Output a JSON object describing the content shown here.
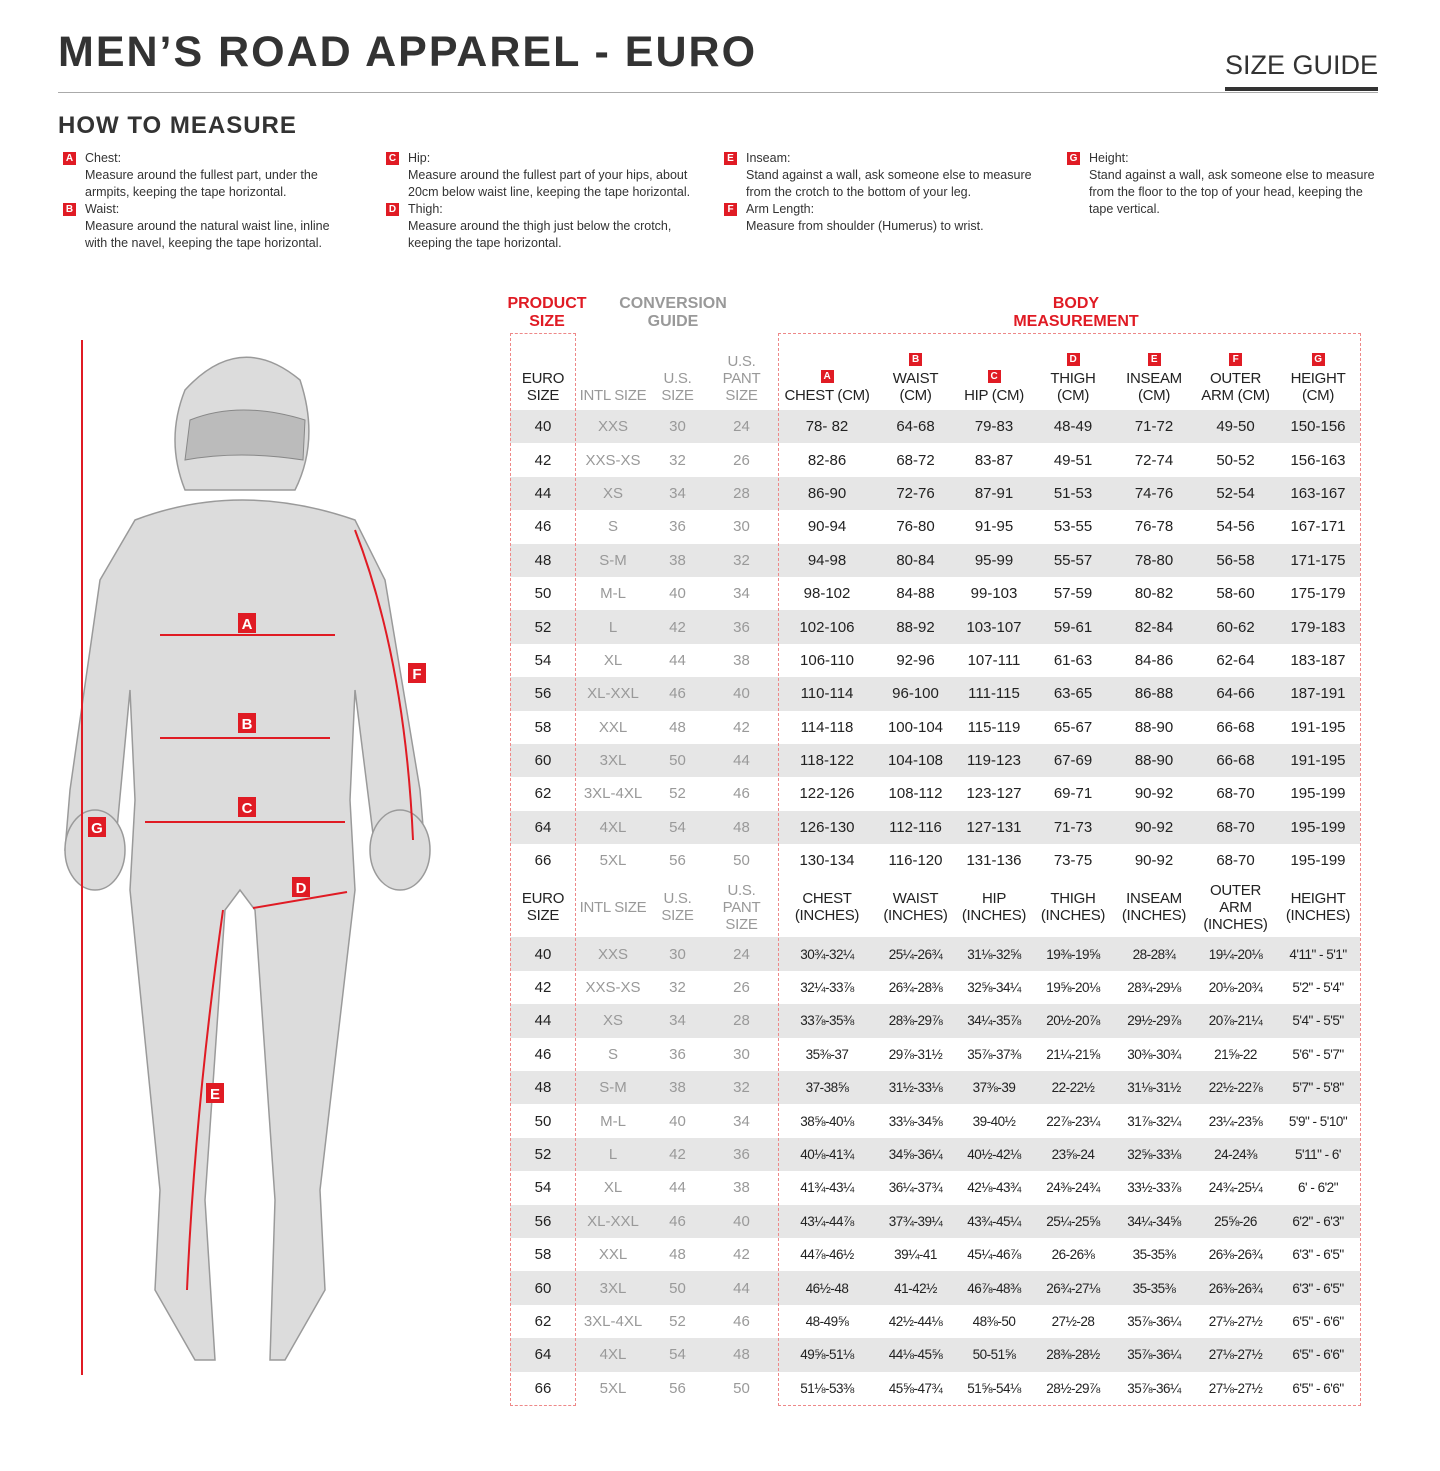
{
  "header": {
    "title": "MEN’S ROAD APPAREL - EURO",
    "tag": "SIZE GUIDE"
  },
  "how_to": {
    "title": "HOW TO MEASURE",
    "items": [
      {
        "letter": "A",
        "name": "Chest:",
        "text": "Measure around the fullest part, under the armpits, keeping the tape horizontal."
      },
      {
        "letter": "B",
        "name": "Waist:",
        "text": "Measure around the natural waist line, inline with the navel, keeping the tape horizontal."
      },
      {
        "letter": "C",
        "name": "Hip:",
        "text": "Measure around the fullest part of your hips, about 20cm below waist line, keeping the tape horizontal."
      },
      {
        "letter": "D",
        "name": "Thigh:",
        "text": "Measure around the thigh just below the crotch, keeping the tape horizontal."
      },
      {
        "letter": "E",
        "name": "Inseam:",
        "text": "Stand against a wall, ask someone else to measure from the crotch to the bottom of your leg."
      },
      {
        "letter": "F",
        "name": "Arm Length:",
        "text": "Measure from shoulder (Humerus) to wrist."
      },
      {
        "letter": "G",
        "name": "Height:",
        "text": "Stand against a wall, ask someone else to measure from the floor to the top of your head, keeping the tape vertical."
      }
    ]
  },
  "groups": {
    "product": "PRODUCT SIZE",
    "conversion": "CONVERSION GUIDE",
    "body": "BODY MEASUREMENT"
  },
  "colors": {
    "accent": "#e01b24",
    "stripe": "#e6e6e6"
  },
  "figure_labels": [
    "A",
    "B",
    "C",
    "D",
    "E",
    "F",
    "G"
  ],
  "cm_headers": [
    "EURO SIZE",
    "INTL SIZE",
    "U.S. SIZE",
    "U.S. PANT SIZE",
    "CHEST (CM)",
    "WAIST (CM)",
    "HIP (CM)",
    "THIGH (CM)",
    "INSEAM (CM)",
    "OUTER ARM (CM)",
    "HEIGHT (CM)"
  ],
  "header_letters": [
    "A",
    "B",
    "C",
    "D",
    "E",
    "F",
    "G"
  ],
  "cm_rows": [
    [
      "40",
      "XXS",
      "30",
      "24",
      "78- 82",
      "64-68",
      "79-83",
      "48-49",
      "71-72",
      "49-50",
      "150-156"
    ],
    [
      "42",
      "XXS-XS",
      "32",
      "26",
      "82-86",
      "68-72",
      "83-87",
      "49-51",
      "72-74",
      "50-52",
      "156-163"
    ],
    [
      "44",
      "XS",
      "34",
      "28",
      "86-90",
      "72-76",
      "87-91",
      "51-53",
      "74-76",
      "52-54",
      "163-167"
    ],
    [
      "46",
      "S",
      "36",
      "30",
      "90-94",
      "76-80",
      "91-95",
      "53-55",
      "76-78",
      "54-56",
      "167-171"
    ],
    [
      "48",
      "S-M",
      "38",
      "32",
      "94-98",
      "80-84",
      "95-99",
      "55-57",
      "78-80",
      "56-58",
      "171-175"
    ],
    [
      "50",
      "M-L",
      "40",
      "34",
      "98-102",
      "84-88",
      "99-103",
      "57-59",
      "80-82",
      "58-60",
      "175-179"
    ],
    [
      "52",
      "L",
      "42",
      "36",
      "102-106",
      "88-92",
      "103-107",
      "59-61",
      "82-84",
      "60-62",
      "179-183"
    ],
    [
      "54",
      "XL",
      "44",
      "38",
      "106-110",
      "92-96",
      "107-111",
      "61-63",
      "84-86",
      "62-64",
      "183-187"
    ],
    [
      "56",
      "XL-XXL",
      "46",
      "40",
      "110-114",
      "96-100",
      "111-115",
      "63-65",
      "86-88",
      "64-66",
      "187-191"
    ],
    [
      "58",
      "XXL",
      "48",
      "42",
      "114-118",
      "100-104",
      "115-119",
      "65-67",
      "88-90",
      "66-68",
      "191-195"
    ],
    [
      "60",
      "3XL",
      "50",
      "44",
      "118-122",
      "104-108",
      "119-123",
      "67-69",
      "88-90",
      "66-68",
      "191-195"
    ],
    [
      "62",
      "3XL-4XL",
      "52",
      "46",
      "122-126",
      "108-112",
      "123-127",
      "69-71",
      "90-92",
      "68-70",
      "195-199"
    ],
    [
      "64",
      "4XL",
      "54",
      "48",
      "126-130",
      "112-116",
      "127-131",
      "71-73",
      "90-92",
      "68-70",
      "195-199"
    ],
    [
      "66",
      "5XL",
      "56",
      "50",
      "130-134",
      "116-120",
      "131-136",
      "73-75",
      "90-92",
      "68-70",
      "195-199"
    ]
  ],
  "in_headers": [
    "EURO SIZE",
    "INTL SIZE",
    "U.S. SIZE",
    "U.S. PANT SIZE",
    "CHEST (INCHES)",
    "WAIST (INCHES)",
    "HIP (INCHES)",
    "THIGH (INCHES)",
    "INSEAM (INCHES)",
    "OUTER ARM (INCHES)",
    "HEIGHT (INCHES)"
  ],
  "in_rows": [
    [
      "40",
      "XXS",
      "30",
      "24",
      "30¾-32¼",
      "25¼-26¾",
      "31⅛-32⅝",
      "19⅜-19⅝",
      "28-28¾",
      "19¼-20⅛",
      "4'11\" - 5'1\""
    ],
    [
      "42",
      "XXS-XS",
      "32",
      "26",
      "32¼-33⅞",
      "26¾-28⅜",
      "32⅝-34¼",
      "19⅝-20⅛",
      "28¾-29⅛",
      "20⅛-20¾",
      "5'2\" - 5'4\""
    ],
    [
      "44",
      "XS",
      "34",
      "28",
      "33⅞-35⅜",
      "28⅜-29⅞",
      "34¼-35⅞",
      "20½-20⅞",
      "29½-29⅞",
      "20⅞-21¼",
      "5'4\" - 5'5\""
    ],
    [
      "46",
      "S",
      "36",
      "30",
      "35⅜-37",
      "29⅞-31½",
      "35⅞-37⅜",
      "21¼-21⅝",
      "30⅜-30¾",
      "21⅝-22",
      "5'6\" - 5'7\""
    ],
    [
      "48",
      "S-M",
      "38",
      "32",
      "37-38⅝",
      "31½-33⅛",
      "37⅜-39",
      "22-22½",
      "31⅛-31½",
      "22½-22⅞",
      "5'7\" - 5'8\""
    ],
    [
      "50",
      "M-L",
      "40",
      "34",
      "38⅝-40⅛",
      "33⅛-34⅝",
      "39-40½",
      "22⅞-23¼",
      "31⅞-32¼",
      "23¼-23⅝",
      "5'9\" - 5'10\""
    ],
    [
      "52",
      "L",
      "42",
      "36",
      "40⅛-41¾",
      "34⅝-36¼",
      "40½-42⅛",
      "23⅝-24",
      "32⅝-33⅛",
      "24-24⅜",
      "5'11\" - 6'"
    ],
    [
      "54",
      "XL",
      "44",
      "38",
      "41¾-43¼",
      "36¼-37¾",
      "42⅛-43¾",
      "24⅜-24¾",
      "33½-33⅞",
      "24¾-25¼",
      "6' - 6'2\""
    ],
    [
      "56",
      "XL-XXL",
      "46",
      "40",
      "43¼-44⅞",
      "37¾-39¼",
      "43¾-45¼",
      "25¼-25⅝",
      "34¼-34⅝",
      "25⅝-26",
      "6'2\" - 6'3\""
    ],
    [
      "58",
      "XXL",
      "48",
      "42",
      "44⅞-46½",
      "39¼-41",
      "45¼-46⅞",
      "26-26⅜",
      "35-35⅜",
      "26⅜-26¾",
      "6'3\" - 6'5\""
    ],
    [
      "60",
      "3XL",
      "50",
      "44",
      "46½-48",
      "41-42½",
      "46⅞-48⅜",
      "26¾-27⅛",
      "35-35⅜",
      "26⅜-26¾",
      "6'3\" - 6'5\""
    ],
    [
      "62",
      "3XL-4XL",
      "52",
      "46",
      "48-49⅝",
      "42½-44⅛",
      "48⅜-50",
      "27½-28",
      "35⅞-36¼",
      "27⅛-27½",
      "6'5\" - 6'6\""
    ],
    [
      "64",
      "4XL",
      "54",
      "48",
      "49⅝-51⅛",
      "44⅛-45⅝",
      "50-51⅝",
      "28⅜-28½",
      "35⅞-36¼",
      "27⅛-27½",
      "6'5\" - 6'6\""
    ],
    [
      "66",
      "5XL",
      "56",
      "50",
      "51⅛-53⅜",
      "45⅝-47¾",
      "51⅝-54⅛",
      "28½-29⅞",
      "35⅞-36¼",
      "27⅛-27½",
      "6'5\" - 6'6\""
    ]
  ]
}
